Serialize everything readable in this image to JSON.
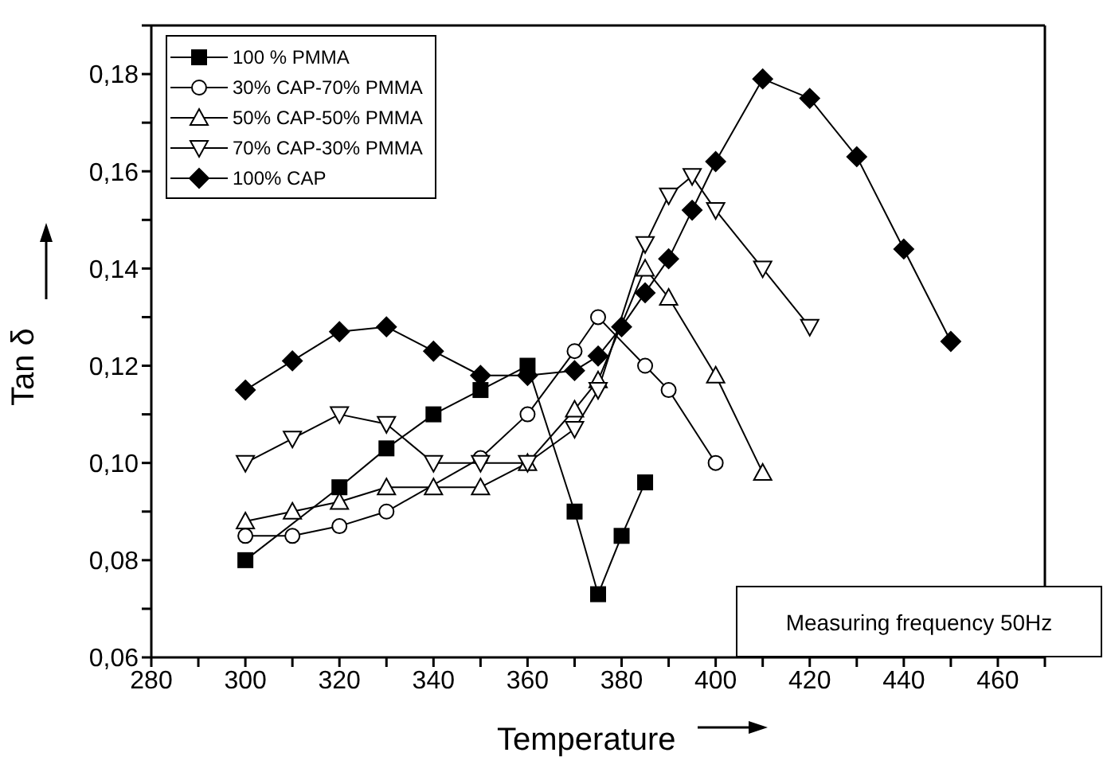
{
  "chart_data": {
    "type": "line",
    "xlabel": "Temperature",
    "ylabel": "Tan δ",
    "annotations": [
      "Measuring frequency 50Hz"
    ],
    "xlim": [
      280,
      470
    ],
    "xticks": [
      280,
      {
        "value": 290,
        "label": null
      },
      300,
      {
        "value": 310,
        "label": null
      },
      320,
      {
        "value": 330,
        "label": null
      },
      340,
      {
        "value": 350,
        "label": null
      },
      360,
      {
        "value": 370,
        "label": null
      },
      380,
      {
        "value": 390,
        "label": null
      },
      400,
      {
        "value": 410,
        "label": null
      },
      420,
      {
        "value": 430,
        "label": null
      },
      440,
      {
        "value": 450,
        "label": null
      },
      460,
      {
        "value": 470,
        "label": null
      }
    ],
    "ylim": [
      0.06,
      0.19
    ],
    "yticks": [
      {
        "value": 0.06,
        "label": "0,06"
      },
      {
        "value": 0.07,
        "label": null
      },
      {
        "value": 0.08,
        "label": "0,08"
      },
      {
        "value": 0.09,
        "label": null
      },
      {
        "value": 0.1,
        "label": "0,10"
      },
      {
        "value": 0.11,
        "label": null
      },
      {
        "value": 0.12,
        "label": "0,12"
      },
      {
        "value": 0.13,
        "label": null
      },
      {
        "value": 0.14,
        "label": "0,14"
      },
      {
        "value": 0.15,
        "label": null
      },
      {
        "value": 0.16,
        "label": "0,16"
      },
      {
        "value": 0.17,
        "label": null
      },
      {
        "value": 0.18,
        "label": "0,18"
      },
      {
        "value": 0.19,
        "label": null
      }
    ],
    "legend": "top left",
    "line_style": "solid",
    "series": [
      {
        "name": "100 % PMMA",
        "color": "#000000",
        "marker": "square",
        "x": [
          300,
          320,
          330,
          340,
          350,
          360,
          370,
          375,
          380,
          385
        ],
        "values": [
          0.08,
          0.095,
          0.103,
          0.11,
          0.115,
          0.12,
          0.09,
          0.073,
          0.085,
          0.096
        ]
      },
      {
        "name": "30% CAP-70% PMMA",
        "color": "#000000",
        "marker": "circle",
        "x": [
          300,
          310,
          320,
          330,
          350,
          360,
          370,
          375,
          385,
          390,
          400
        ],
        "values": [
          0.085,
          0.085,
          0.087,
          0.09,
          0.101,
          0.11,
          0.123,
          0.13,
          0.12,
          0.115,
          0.1
        ]
      },
      {
        "name": "50% CAP-50% PMMA",
        "color": "#000000",
        "marker": "triangle",
        "x": [
          300,
          310,
          320,
          330,
          340,
          350,
          360,
          370,
          375,
          385,
          390,
          400,
          410
        ],
        "values": [
          0.088,
          0.09,
          0.092,
          0.095,
          0.095,
          0.095,
          0.1,
          0.111,
          0.117,
          0.14,
          0.134,
          0.118,
          0.098
        ]
      },
      {
        "name": "70% CAP-30% PMMA",
        "color": "#000000",
        "marker": "triangle-down",
        "x": [
          300,
          310,
          320,
          330,
          340,
          350,
          360,
          370,
          375,
          385,
          390,
          395,
          400,
          410,
          420
        ],
        "values": [
          0.1,
          0.105,
          0.11,
          0.108,
          0.1,
          0.1,
          0.1,
          0.107,
          0.115,
          0.145,
          0.155,
          0.159,
          0.152,
          0.14,
          0.128
        ]
      },
      {
        "name": "100% CAP",
        "color": "#000000",
        "marker": "diamond",
        "x": [
          300,
          310,
          320,
          330,
          340,
          350,
          360,
          370,
          375,
          380,
          385,
          390,
          395,
          400,
          410,
          420,
          430,
          440,
          450
        ],
        "values": [
          0.115,
          0.121,
          0.127,
          0.128,
          0.123,
          0.118,
          0.118,
          0.119,
          0.122,
          0.128,
          0.135,
          0.142,
          0.152,
          0.162,
          0.179,
          0.175,
          0.163,
          0.144,
          0.125
        ]
      }
    ]
  }
}
